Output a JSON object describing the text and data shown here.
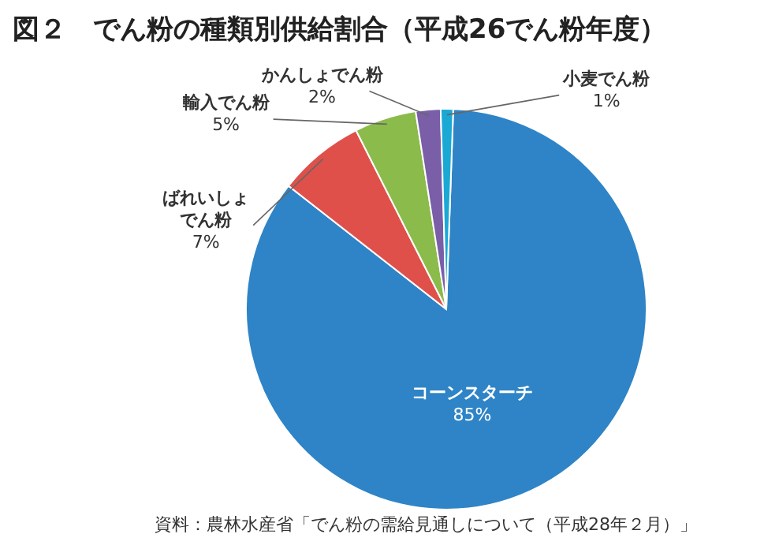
{
  "chart_data": {
    "type": "pie",
    "title": "図２　でん粉の種類別供給割合（平成26でん粉年度）",
    "categories": [
      "コーンスターチ",
      "ばれいしょでん粉",
      "輸入でん粉",
      "かんしょでん粉",
      "小麦でん粉"
    ],
    "values": [
      85,
      7,
      5,
      2,
      1
    ],
    "colors": [
      "#2e84c6",
      "#e0504a",
      "#8bbb4a",
      "#7a5ea8",
      "#1aa9d5"
    ],
    "value_labels": [
      "85%",
      "7%",
      "5%",
      "2%",
      "1%"
    ],
    "annotations": [
      "資料：農林水産省「でん粉の需給見通しについて（平成28年２月）」"
    ]
  }
}
